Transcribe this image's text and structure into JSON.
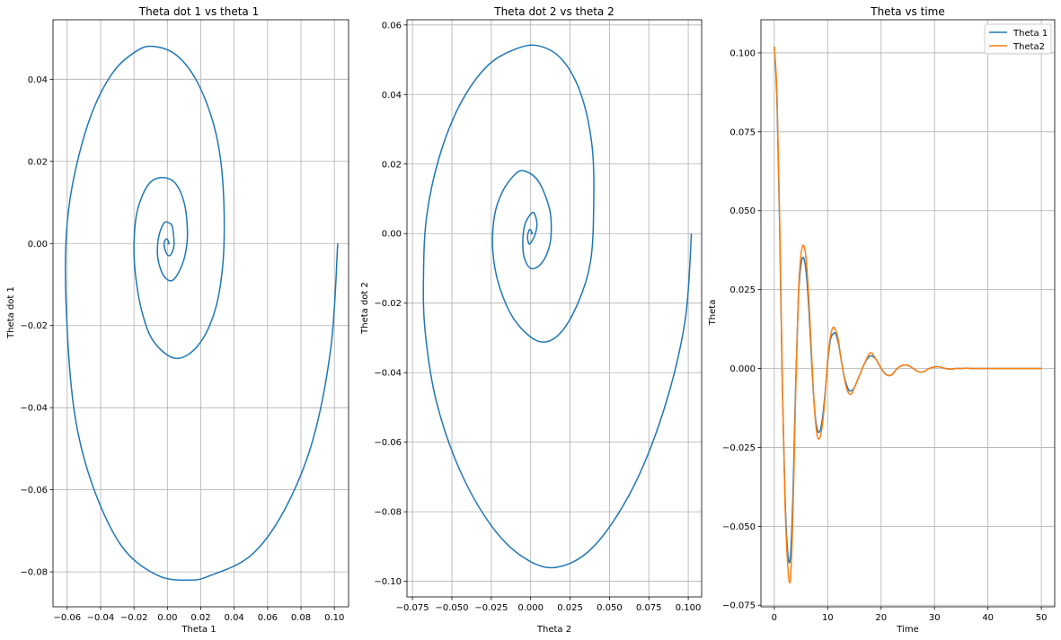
{
  "chart_data": [
    {
      "type": "line",
      "title": "Theta dot 1 vs theta 1",
      "xlabel": "Theta 1",
      "ylabel": "Theta dot 1",
      "xlim": [
        -0.0685,
        0.1085
      ],
      "ylim": [
        -0.0885,
        0.0545
      ],
      "xticks": [
        -0.06,
        -0.04,
        -0.02,
        0.0,
        0.02,
        0.04,
        0.06,
        0.08,
        0.1
      ],
      "xtick_labels": [
        "−0.06",
        "−0.04",
        "−0.02",
        "0.00",
        "0.02",
        "0.04",
        "0.06",
        "0.08",
        "0.10"
      ],
      "yticks": [
        -0.08,
        -0.06,
        -0.04,
        -0.02,
        0.0,
        0.02,
        0.04
      ],
      "ytick_labels": [
        "−0.08",
        "−0.06",
        "−0.04",
        "−0.02",
        "0.00",
        "0.02",
        "0.04"
      ],
      "grid": true,
      "series": [
        {
          "color": "#1f77b4",
          "x": [
            0.102,
            0.098,
            0.087,
            0.07,
            0.05,
            0.025,
            0.013,
            -0.005,
            -0.025,
            -0.04,
            -0.052,
            -0.058,
            -0.061,
            -0.06,
            -0.055,
            -0.045,
            -0.032,
            -0.018,
            -0.008,
            0.005,
            0.017,
            0.027,
            0.032,
            0.034,
            0.033,
            0.028,
            0.018,
            0.005,
            -0.008,
            -0.015,
            -0.019,
            -0.02,
            -0.018,
            -0.012,
            -0.005,
            0.004,
            0.01,
            0.012,
            0.011,
            0.008,
            0.003,
            -0.002,
            -0.005,
            -0.006,
            -0.005,
            -0.002,
            0.001,
            0.003,
            0.004,
            0.003,
            0.001,
            -0.001,
            -0.002,
            -0.001,
            0.0,
            0.001,
            0.0
          ],
          "y": [
            0.0,
            -0.025,
            -0.048,
            -0.065,
            -0.076,
            -0.081,
            -0.082,
            -0.081,
            -0.075,
            -0.064,
            -0.049,
            -0.033,
            -0.01,
            0.005,
            0.018,
            0.032,
            0.042,
            0.047,
            0.048,
            0.046,
            0.04,
            0.03,
            0.02,
            0.007,
            -0.006,
            -0.017,
            -0.025,
            -0.028,
            -0.024,
            -0.017,
            -0.008,
            0.0,
            0.008,
            0.014,
            0.016,
            0.015,
            0.01,
            0.003,
            -0.002,
            -0.006,
            -0.009,
            -0.008,
            -0.005,
            -0.002,
            0.002,
            0.005,
            0.005,
            0.004,
            0.0,
            -0.002,
            -0.003,
            -0.002,
            0.0,
            0.001,
            0.001,
            0.0,
            0.0
          ]
        }
      ]
    },
    {
      "type": "line",
      "title": "Theta dot 2 vs theta 2",
      "xlabel": "Theta 2",
      "ylabel": "Theta dot 2",
      "xlim": [
        -0.0785,
        0.1085
      ],
      "ylim": [
        -0.1045,
        0.0615
      ],
      "xticks": [
        -0.075,
        -0.05,
        -0.025,
        0.0,
        0.025,
        0.05,
        0.075,
        0.1
      ],
      "xtick_labels": [
        "−0.075",
        "−0.050",
        "−0.025",
        "0.000",
        "0.025",
        "0.050",
        "0.075",
        "0.100"
      ],
      "yticks": [
        -0.1,
        -0.08,
        -0.06,
        -0.04,
        -0.02,
        0.0,
        0.02,
        0.04,
        0.06
      ],
      "ytick_labels": [
        "−0.10",
        "−0.08",
        "−0.06",
        "−0.04",
        "−0.02",
        "0.00",
        "0.02",
        "0.04",
        "0.06"
      ],
      "grid": true,
      "series": [
        {
          "color": "#1f77b4",
          "x": [
            0.102,
            0.098,
            0.085,
            0.065,
            0.04,
            0.016,
            -0.005,
            -0.025,
            -0.045,
            -0.06,
            -0.067,
            -0.068,
            -0.066,
            -0.058,
            -0.045,
            -0.028,
            -0.01,
            0.005,
            0.02,
            0.032,
            0.039,
            0.04,
            0.038,
            0.03,
            0.018,
            0.005,
            -0.01,
            -0.02,
            -0.024,
            -0.023,
            -0.018,
            -0.01,
            -0.004,
            0.005,
            0.012,
            0.013,
            0.011,
            0.006,
            0.0,
            -0.004,
            -0.005,
            -0.004,
            -0.001,
            0.002,
            0.004,
            0.003,
            0.001,
            -0.001,
            -0.002,
            -0.001,
            0.0,
            0.001,
            0.0
          ],
          "y": [
            0.0,
            -0.025,
            -0.05,
            -0.073,
            -0.09,
            -0.096,
            -0.093,
            -0.084,
            -0.068,
            -0.048,
            -0.028,
            -0.012,
            0.005,
            0.022,
            0.037,
            0.048,
            0.053,
            0.054,
            0.05,
            0.04,
            0.025,
            0.008,
            -0.008,
            -0.02,
            -0.029,
            -0.031,
            -0.025,
            -0.015,
            -0.005,
            0.005,
            0.012,
            0.017,
            0.018,
            0.015,
            0.007,
            0.0,
            -0.005,
            -0.009,
            -0.01,
            -0.007,
            -0.003,
            0.002,
            0.005,
            0.006,
            0.003,
            0.0,
            -0.002,
            -0.003,
            -0.001,
            0.001,
            0.001,
            0.0,
            0.0
          ]
        }
      ]
    },
    {
      "type": "line",
      "title": "Theta vs time",
      "xlabel": "Time",
      "ylabel": "Theta",
      "xlim": [
        -2.5,
        52.5
      ],
      "ylim": [
        -0.0755,
        0.1105
      ],
      "xticks": [
        0,
        10,
        20,
        30,
        40,
        50
      ],
      "xtick_labels": [
        "0",
        "10",
        "20",
        "30",
        "40",
        "50"
      ],
      "yticks": [
        -0.075,
        -0.05,
        -0.025,
        0.0,
        0.025,
        0.05,
        0.075,
        0.1
      ],
      "ytick_labels": [
        "−0.075",
        "−0.050",
        "−0.025",
        "0.000",
        "0.025",
        "0.050",
        "0.075",
        "0.100"
      ],
      "grid": true,
      "legend": "top-right",
      "x": [
        0,
        0.5,
        1,
        1.5,
        2,
        2.5,
        3,
        3.5,
        4,
        4.5,
        5,
        5.5,
        6,
        6.5,
        7,
        7.5,
        8,
        8.5,
        9,
        9.5,
        10,
        10.5,
        11,
        11.5,
        12,
        12.5,
        13,
        13.5,
        14,
        14.5,
        15,
        16,
        17,
        18,
        19,
        20,
        21,
        22,
        23,
        24,
        25,
        26,
        27,
        28,
        29,
        30,
        31,
        32,
        33,
        34,
        35,
        36,
        37,
        38,
        40,
        42,
        45,
        50
      ],
      "series": [
        {
          "name": "Theta 1",
          "color": "#1f77b4",
          "values": [
            0.102,
            0.085,
            0.045,
            -0.005,
            -0.04,
            -0.058,
            -0.06,
            -0.04,
            -0.005,
            0.022,
            0.033,
            0.035,
            0.03,
            0.018,
            0.002,
            -0.012,
            -0.019,
            -0.02,
            -0.016,
            -0.008,
            0.002,
            0.009,
            0.011,
            0.011,
            0.008,
            0.003,
            -0.002,
            -0.005,
            -0.007,
            -0.007,
            -0.006,
            -0.002,
            0.002,
            0.004,
            0.003,
            0.0,
            -0.002,
            -0.002,
            0.0,
            0.001,
            0.001,
            0.0,
            -0.001,
            -0.001,
            0.0,
            0.0005,
            0.0005,
            0.0,
            -0.0002,
            0.0,
            0.0,
            0.0001,
            0.0,
            0.0,
            0.0,
            0.0,
            0.0,
            0.0
          ]
        },
        {
          "name": "Theta2",
          "color": "#ff7f0e",
          "values": [
            0.102,
            0.087,
            0.048,
            -0.004,
            -0.042,
            -0.062,
            -0.067,
            -0.046,
            -0.008,
            0.023,
            0.036,
            0.039,
            0.034,
            0.021,
            0.004,
            -0.012,
            -0.021,
            -0.022,
            -0.018,
            -0.009,
            0.003,
            0.01,
            0.013,
            0.012,
            0.009,
            0.003,
            -0.002,
            -0.006,
            -0.008,
            -0.008,
            -0.006,
            -0.002,
            0.002,
            0.005,
            0.003,
            0.0,
            -0.002,
            -0.002,
            0.0,
            0.001,
            0.001,
            0.0,
            -0.001,
            -0.001,
            0.0,
            0.0005,
            0.0005,
            0.0,
            -0.0002,
            0.0,
            0.0,
            0.0001,
            0.0,
            0.0,
            0.0,
            0.0,
            0.0,
            0.0
          ]
        }
      ]
    }
  ]
}
